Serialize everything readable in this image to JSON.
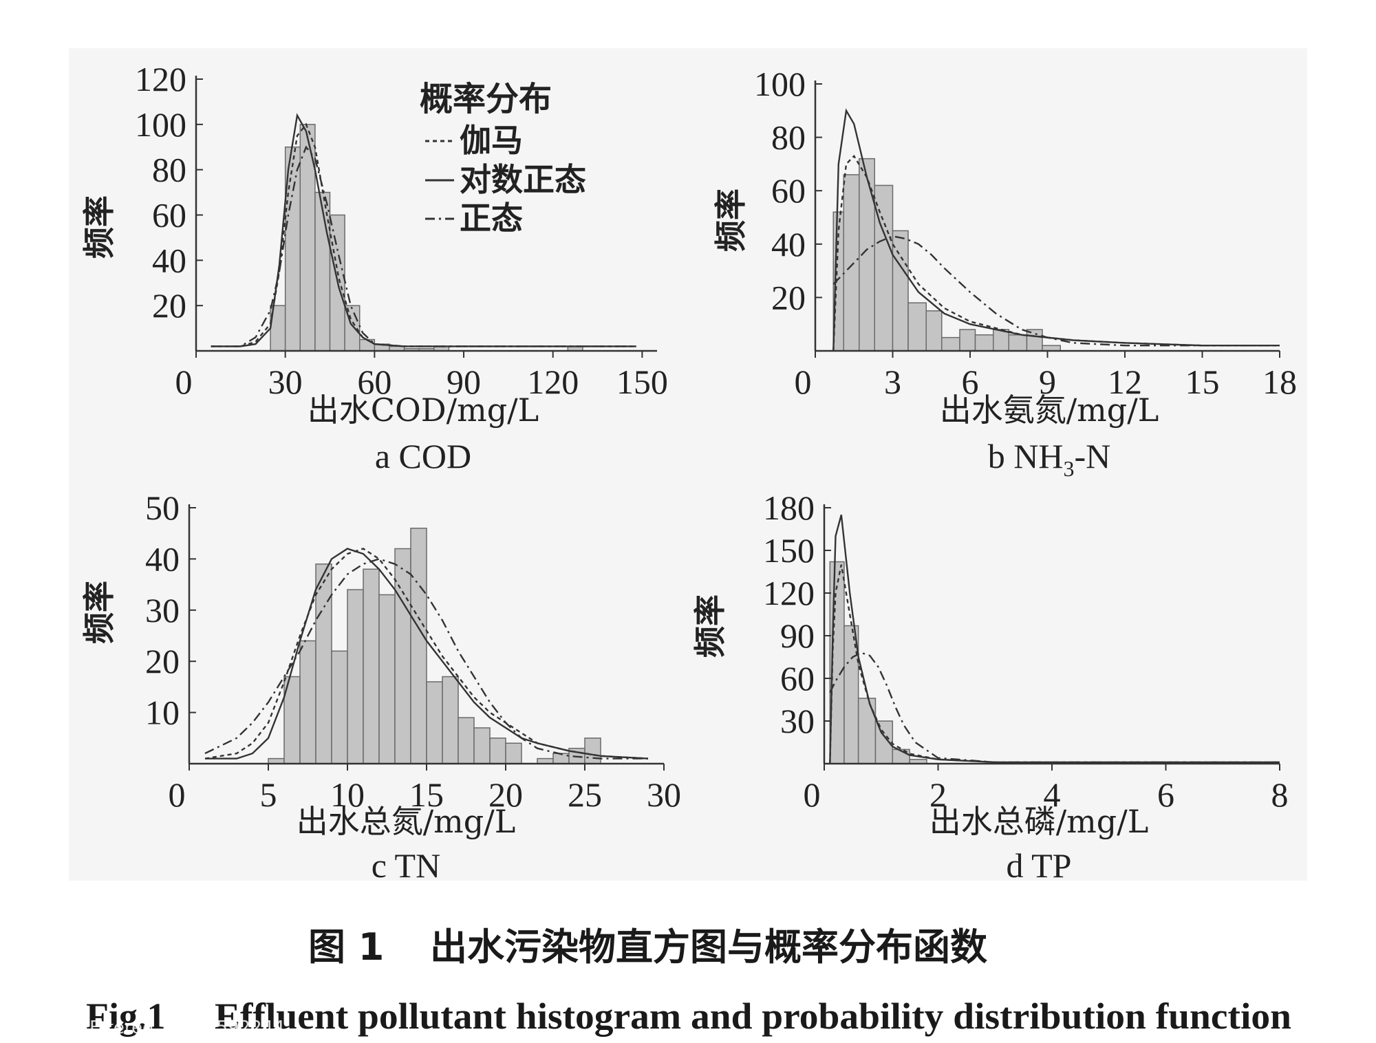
{
  "legend": {
    "title": "概率分布",
    "items": [
      {
        "label": "伽马",
        "dash": "6,5"
      },
      {
        "label": "对数正态",
        "dash": ""
      },
      {
        "label": "正态",
        "dash": "14,6,3,6"
      }
    ]
  },
  "chart_data": [
    {
      "id": "a",
      "type": "bar",
      "subtitle": "a COD",
      "xlabel": "出水COD/mg/L",
      "ylabel": "频率",
      "xlim": [
        0,
        155
      ],
      "ylim": [
        0,
        120
      ],
      "xticks": [
        0,
        30,
        60,
        90,
        120,
        150
      ],
      "yticks": [
        20,
        40,
        60,
        80,
        100,
        120
      ],
      "bin_edges": [
        25,
        30,
        35,
        40,
        45,
        50,
        55,
        60,
        65,
        70,
        75,
        80,
        85,
        90,
        95,
        100,
        105,
        110,
        115,
        120,
        125,
        130
      ],
      "values": [
        20,
        90,
        100,
        70,
        60,
        20,
        5,
        3,
        2,
        1,
        1,
        2,
        0,
        0,
        0,
        0,
        0,
        0,
        0,
        0,
        2
      ],
      "series": [
        {
          "name": "伽马",
          "x": [
            5,
            15,
            20,
            25,
            28,
            31,
            34,
            37,
            40,
            44,
            48,
            52,
            56,
            60,
            70,
            80,
            100,
            148
          ],
          "values": [
            2,
            2,
            4,
            12,
            35,
            70,
            95,
            100,
            90,
            60,
            32,
            14,
            6,
            3,
            2,
            2,
            2,
            2
          ]
        },
        {
          "name": "对数正态",
          "x": [
            5,
            15,
            20,
            25,
            28,
            31,
            34,
            37,
            40,
            44,
            48,
            52,
            56,
            60,
            70,
            80,
            100,
            148
          ],
          "values": [
            2,
            2,
            3,
            10,
            38,
            80,
            104,
            97,
            80,
            52,
            28,
            12,
            6,
            3,
            2,
            2,
            2,
            2
          ]
        },
        {
          "name": "正态",
          "x": [
            5,
            15,
            20,
            25,
            28,
            31,
            34,
            37,
            40,
            44,
            48,
            52,
            56,
            60,
            70,
            80,
            100,
            148
          ],
          "values": [
            2,
            2,
            6,
            18,
            35,
            60,
            80,
            90,
            85,
            65,
            42,
            20,
            8,
            3,
            2,
            2,
            2,
            2
          ]
        }
      ]
    },
    {
      "id": "b",
      "type": "bar",
      "subtitle": "b NH",
      "subtitle_sub": "3",
      "subtitle_tail": "-N",
      "xlabel": "出水氨氮/mg/L",
      "ylabel": "频率",
      "xlim": [
        0,
        18
      ],
      "ylim": [
        0,
        100
      ],
      "xticks": [
        0,
        3,
        6,
        9,
        12,
        15,
        18
      ],
      "yticks": [
        20,
        40,
        60,
        80,
        100
      ],
      "bin_edges": [
        0.7,
        1.1,
        1.7,
        2.3,
        3.0,
        3.6,
        4.3,
        4.9,
        5.6,
        6.2,
        6.9,
        7.5,
        8.2,
        8.8,
        9.5
      ],
      "values": [
        52,
        66,
        72,
        62,
        45,
        18,
        15,
        5,
        8,
        6,
        8,
        6,
        8,
        2
      ],
      "series": [
        {
          "name": "伽马",
          "x": [
            0.7,
            0.9,
            1.2,
            1.5,
            2,
            2.5,
            3,
            4,
            5,
            6,
            8,
            10,
            12,
            15,
            18
          ],
          "values": [
            0,
            45,
            70,
            73,
            65,
            52,
            40,
            25,
            16,
            11,
            6,
            4,
            3,
            2,
            2
          ]
        },
        {
          "name": "对数正态",
          "x": [
            0.7,
            0.9,
            1.2,
            1.5,
            2,
            2.5,
            3,
            4,
            5,
            6,
            8,
            10,
            12,
            15,
            18
          ],
          "values": [
            0,
            70,
            90,
            85,
            65,
            48,
            36,
            22,
            14,
            10,
            6,
            4,
            3,
            2,
            2
          ]
        },
        {
          "name": "正态",
          "x": [
            0.7,
            1,
            1.5,
            2,
            2.5,
            3,
            3.5,
            4,
            4.5,
            5,
            6,
            7,
            8,
            9,
            10,
            12,
            15,
            18
          ],
          "values": [
            25,
            28,
            33,
            38,
            41,
            43,
            42,
            40,
            36,
            31,
            22,
            14,
            8,
            5,
            3,
            2,
            2,
            2
          ]
        }
      ]
    },
    {
      "id": "c",
      "type": "bar",
      "subtitle": "c TN",
      "xlabel": "出水总氮/mg/L",
      "ylabel": "频率",
      "xlim": [
        0,
        30
      ],
      "ylim": [
        0,
        50
      ],
      "xticks": [
        0,
        5,
        10,
        15,
        20,
        25,
        30
      ],
      "yticks": [
        10,
        20,
        30,
        40,
        50
      ],
      "bin_edges": [
        5,
        6,
        7,
        8,
        9,
        10,
        11,
        12,
        13,
        14,
        15,
        16,
        17,
        18,
        19,
        20,
        21,
        22,
        23,
        24,
        25,
        26
      ],
      "values": [
        1,
        17,
        24,
        39,
        22,
        34,
        38,
        33,
        42,
        46,
        16,
        17,
        9,
        7,
        5,
        4,
        0,
        1,
        2,
        3,
        5
      ],
      "series": [
        {
          "name": "伽马",
          "x": [
            1,
            3,
            4,
            5,
            6,
            7,
            8,
            9,
            10,
            11,
            12,
            13,
            14,
            15,
            16,
            17,
            18,
            19,
            20,
            21,
            22,
            24,
            26,
            29
          ],
          "values": [
            1,
            2,
            4,
            8,
            16,
            25,
            33,
            38,
            41,
            42,
            40,
            36,
            31,
            26,
            21,
            17,
            13,
            10,
            8,
            6,
            4,
            2.5,
            1.5,
            1
          ]
        },
        {
          "name": "对数正态",
          "x": [
            1,
            3,
            4,
            5,
            6,
            7,
            8,
            9,
            10,
            11,
            12,
            13,
            14,
            15,
            16,
            17,
            18,
            19,
            20,
            21,
            22,
            24,
            26,
            29
          ],
          "values": [
            1,
            1,
            2,
            5,
            13,
            24,
            34,
            40,
            42,
            41,
            38,
            34,
            29,
            24,
            20,
            16,
            12,
            9,
            7,
            5,
            4,
            2.5,
            1.5,
            1
          ]
        },
        {
          "name": "正态",
          "x": [
            1,
            3,
            4,
            5,
            6,
            7,
            8,
            9,
            10,
            11,
            12,
            13,
            14,
            15,
            16,
            17,
            18,
            19,
            20,
            21,
            22,
            24,
            26,
            29
          ],
          "values": [
            2,
            5,
            8,
            12,
            17,
            22,
            28,
            33,
            37,
            39,
            40,
            39,
            37,
            33,
            28,
            22,
            17,
            12,
            8,
            5,
            3,
            1.5,
            1,
            1
          ]
        }
      ]
    },
    {
      "id": "d",
      "type": "bar",
      "subtitle": "d TP",
      "xlabel": "出水总磷/mg/L",
      "ylabel": "频率",
      "xlim": [
        0,
        8
      ],
      "ylim": [
        0,
        180
      ],
      "xticks": [
        0,
        2,
        4,
        6,
        8
      ],
      "yticks": [
        30,
        60,
        90,
        120,
        150,
        180
      ],
      "bin_edges": [
        0.1,
        0.35,
        0.6,
        0.9,
        1.2,
        1.5,
        1.8
      ],
      "values": [
        142,
        97,
        46,
        30,
        10,
        3
      ],
      "series": [
        {
          "name": "伽马",
          "x": [
            0.1,
            0.15,
            0.2,
            0.3,
            0.45,
            0.6,
            0.8,
            1.0,
            1.2,
            1.5,
            2,
            3,
            5,
            8
          ],
          "values": [
            0,
            80,
            120,
            140,
            105,
            70,
            42,
            24,
            14,
            7,
            3,
            1,
            1,
            1
          ]
        },
        {
          "name": "对数正态",
          "x": [
            0.1,
            0.15,
            0.2,
            0.3,
            0.45,
            0.6,
            0.8,
            1.0,
            1.2,
            1.5,
            2,
            3,
            5,
            8
          ],
          "values": [
            0,
            90,
            160,
            175,
            120,
            75,
            42,
            22,
            12,
            6,
            3,
            1,
            1,
            1
          ]
        },
        {
          "name": "正态",
          "x": [
            0.1,
            0.2,
            0.35,
            0.5,
            0.65,
            0.8,
            0.95,
            1.1,
            1.25,
            1.4,
            1.6,
            2,
            3,
            5,
            8
          ],
          "values": [
            50,
            58,
            68,
            75,
            78,
            76,
            68,
            55,
            40,
            27,
            15,
            4,
            1,
            1,
            1
          ]
        }
      ]
    }
  ],
  "caption": {
    "cn_label": "图 1",
    "cn_text": "出水污染物直方图与概率分布函数",
    "en_label": "Fig.1",
    "en_text": "Effluent pollutant histogram and probability distribution function"
  },
  "watermark": "E tered ... 013592244 ..."
}
